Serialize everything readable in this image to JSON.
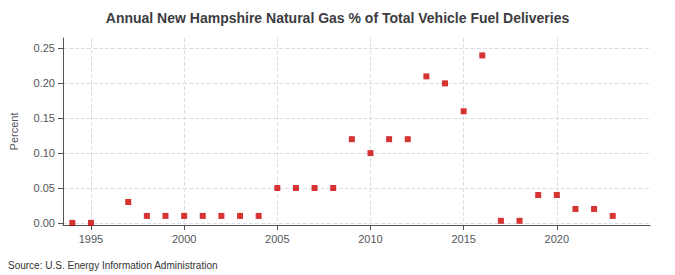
{
  "chart_data": {
    "type": "scatter",
    "title": "Annual New Hampshire Natural Gas % of Total Vehicle Fuel Deliveries",
    "ylabel": "Percent",
    "annotations": [
      "Source: U.S. Energy Information Administration"
    ],
    "x": [
      1994,
      1995,
      1997,
      1998,
      1999,
      2000,
      2001,
      2002,
      2003,
      2004,
      2005,
      2006,
      2007,
      2008,
      2009,
      2010,
      2011,
      2012,
      2013,
      2014,
      2015,
      2016,
      2017,
      2018,
      2019,
      2020,
      2021,
      2022,
      2023
    ],
    "values": [
      0.0,
      0.0,
      0.03,
      0.01,
      0.01,
      0.01,
      0.01,
      0.01,
      0.01,
      0.01,
      0.05,
      0.05,
      0.05,
      0.05,
      0.12,
      0.1,
      0.12,
      0.12,
      0.21,
      0.2,
      0.16,
      0.24,
      0.003,
      0.003,
      0.04,
      0.04,
      0.02,
      0.02,
      0.01
    ],
    "color": "#cc0000",
    "marker": "square",
    "xlim": [
      1993.5,
      2025
    ],
    "ylim": [
      -0.003,
      0.265
    ],
    "xticks": [
      1995,
      2000,
      2005,
      2010,
      2015,
      2020
    ],
    "yticks": [
      {
        "value": 0,
        "label": "0.00"
      },
      0.05,
      {
        "value": 0.1,
        "label": "0.10"
      },
      0.15,
      {
        "value": 0.2,
        "label": "0.20"
      },
      0.25
    ],
    "grid": true
  }
}
